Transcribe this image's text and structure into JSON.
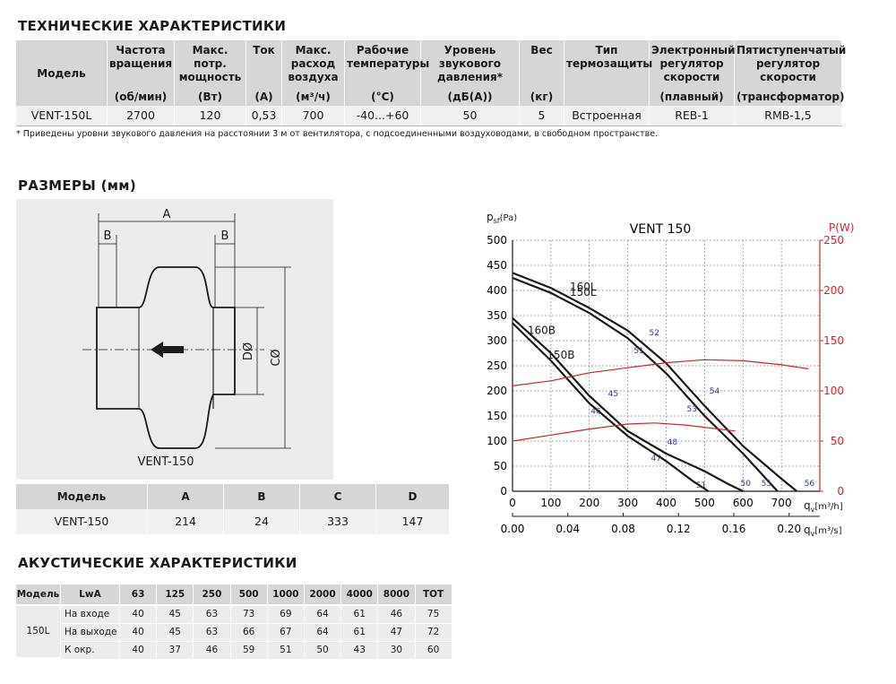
{
  "specs": {
    "title": "ТЕХНИЧЕСКИЕ ХАРАКТЕРИСТИКИ",
    "headers": [
      {
        "name": "Модель"
      },
      {
        "name": "Частота вращения",
        "unit": "(об/мин)"
      },
      {
        "name": "Макс. потр. мощность",
        "unit": "(Вт)"
      },
      {
        "name": "Ток",
        "unit": "(А)"
      },
      {
        "name": "Макс. расход воздуха",
        "unit": "(м³/ч)"
      },
      {
        "name": "Рабочие температуры",
        "unit": "(°С)"
      },
      {
        "name": "Уровень звукового давления*",
        "unit": "(дБ(А))"
      },
      {
        "name": "Вес",
        "unit": "(кг)"
      },
      {
        "name": "Тип термозащиты"
      },
      {
        "name": "Электронный регулятор скорости",
        "unit": "(плавный)"
      },
      {
        "name": "Пятиступенчатый регулятор скорости",
        "unit": "(трансформатор)"
      }
    ],
    "row": [
      "VENT-150L",
      "2700",
      "120",
      "0,53",
      "700",
      "-40...+60",
      "50",
      "5",
      "Встроенная",
      "REB-1",
      "RMB-1,5"
    ],
    "footnote": "* Приведены уровни звукового давления на расстоянии 3 м от вентилятора, с подсоединенными воздуховодами, в свободном пространстве."
  },
  "dimensions": {
    "title": "РАЗМЕРЫ (мм)",
    "diagram": {
      "a": "A",
      "b_left": "B",
      "b_right": "B",
      "d": "DØ",
      "c": "CØ",
      "caption": "VENT-150"
    },
    "headers": [
      "Модель",
      "A",
      "B",
      "C",
      "D"
    ],
    "row": [
      "VENT-150",
      "214",
      "24",
      "333",
      "147"
    ]
  },
  "acoustics": {
    "title": "АКУСТИЧЕСКИЕ ХАРАКТЕРИСТИКИ",
    "headers": [
      "Модель",
      "LwA",
      "63",
      "125",
      "250",
      "500",
      "1000",
      "2000",
      "4000",
      "8000",
      "TOT"
    ],
    "model": "150L",
    "rows": [
      [
        "На входе",
        "40",
        "45",
        "63",
        "73",
        "69",
        "64",
        "61",
        "46",
        "75"
      ],
      [
        "На выходе",
        "40",
        "45",
        "63",
        "66",
        "67",
        "64",
        "61",
        "47",
        "72"
      ],
      [
        "К окр.",
        "40",
        "37",
        "46",
        "59",
        "51",
        "50",
        "43",
        "30",
        "60"
      ]
    ]
  },
  "chart_data": {
    "type": "line",
    "title": "VENT 150",
    "y_label": [
      "p",
      "sf",
      "(Pa)"
    ],
    "y2_label": "P(W)",
    "x_label": [
      "q",
      "v",
      "[m³/h]"
    ],
    "x2_label": [
      "q",
      "v",
      "[m³/s]"
    ],
    "xlim": [
      0,
      800
    ],
    "xticks": [
      0,
      100,
      200,
      300,
      400,
      500,
      600,
      700
    ],
    "x2lim": [
      0,
      0.2222
    ],
    "x2ticks": [
      {
        "value": 0,
        "label": "0.00"
      },
      {
        "value": 0.04,
        "label": "0.04"
      },
      {
        "value": 0.08,
        "label": "0.08"
      },
      {
        "value": 0.12,
        "label": "0.12"
      },
      {
        "value": 0.16,
        "label": "0.16"
      },
      {
        "value": 0.2,
        "label": "0.20"
      }
    ],
    "ylim": [
      0,
      500
    ],
    "yticks": [
      0,
      50,
      100,
      150,
      200,
      250,
      300,
      350,
      400,
      450,
      500
    ],
    "y2lim": [
      0,
      250
    ],
    "y2ticks": [
      0,
      50,
      100,
      150,
      200,
      250
    ],
    "y2_color": "#d2232a",
    "grid": true,
    "series": [
      {
        "name": "160L",
        "color": "#1a1a1a",
        "x": [
          0,
          100,
          200,
          300,
          400,
          500,
          600,
          700,
          740
        ],
        "values": [
          435,
          405,
          365,
          320,
          255,
          170,
          90,
          25,
          0
        ]
      },
      {
        "name": "150L",
        "color": "#1a1a1a",
        "x": [
          0,
          100,
          200,
          300,
          400,
          500,
          600,
          690
        ],
        "values": [
          425,
          395,
          355,
          305,
          235,
          150,
          75,
          0
        ]
      },
      {
        "name": "160B",
        "color": "#1a1a1a",
        "x": [
          0,
          100,
          200,
          300,
          400,
          500,
          560,
          600
        ],
        "values": [
          345,
          275,
          190,
          120,
          75,
          40,
          15,
          0
        ]
      },
      {
        "name": "150B",
        "color": "#1a1a1a",
        "x": [
          0,
          100,
          200,
          300,
          400,
          470,
          510
        ],
        "values": [
          335,
          260,
          175,
          110,
          60,
          20,
          0
        ]
      },
      {
        "color": "#d2232a",
        "axis": "y2",
        "x": [
          0,
          100,
          200,
          300,
          400,
          500,
          600,
          700,
          770
        ],
        "values": [
          105,
          110,
          118,
          123,
          128,
          131,
          130,
          126,
          122
        ]
      },
      {
        "color": "#d2232a",
        "axis": "y2",
        "x": [
          0,
          100,
          200,
          300,
          370,
          450,
          580
        ],
        "values": [
          50,
          56,
          62,
          67,
          68,
          66,
          60
        ]
      }
    ],
    "annotations": [
      {
        "text": "52",
        "x": 369,
        "y": 318
      },
      {
        "text": "51",
        "x": 329,
        "y": 282
      },
      {
        "text": "54",
        "x": 526,
        "y": 202
      },
      {
        "text": "53",
        "x": 467,
        "y": 166
      },
      {
        "text": "45",
        "x": 262,
        "y": 196
      },
      {
        "text": "46",
        "x": 217,
        "y": 162
      },
      {
        "text": "48",
        "x": 416,
        "y": 100
      },
      {
        "text": "47",
        "x": 374,
        "y": 68
      },
      {
        "text": "51",
        "x": 491,
        "y": 14
      },
      {
        "text": "50",
        "x": 607,
        "y": 18
      },
      {
        "text": "55",
        "x": 661,
        "y": 18
      },
      {
        "text": "56",
        "x": 773,
        "y": 18
      }
    ]
  }
}
